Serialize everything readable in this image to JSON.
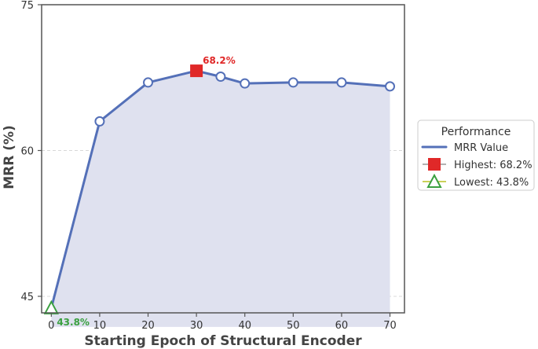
{
  "chart_data": {
    "type": "line",
    "xlabel": "Starting Epoch of Structural Encoder",
    "ylabel": "MRR (%)",
    "ylim": [
      43.3,
      75
    ],
    "xlim": [
      -2,
      73
    ],
    "yticks": [
      45,
      60,
      75
    ],
    "xticks": [
      0,
      10,
      20,
      30,
      40,
      50,
      60,
      70
    ],
    "grid": "horizontal dashed",
    "legend_placement": "right",
    "x": [
      0,
      10,
      20,
      30,
      35,
      40,
      50,
      60,
      70
    ],
    "series": [
      {
        "name": "MRR Value",
        "values": [
          43.8,
          63.0,
          67.0,
          68.2,
          67.6,
          66.9,
          67.0,
          67.0,
          66.6
        ]
      }
    ],
    "highest": {
      "x": 30,
      "y": 68.2,
      "label": "68.2%"
    },
    "lowest": {
      "x": 0,
      "y": 43.8,
      "label": "43.8%"
    },
    "legend": {
      "title": "Performance",
      "entries": [
        "MRR Value",
        "Highest: 68.2%",
        "Lowest: 43.8%"
      ]
    },
    "colors": {
      "line": "#5470b8",
      "fill": "#dfe1ef",
      "highest": "#e02828",
      "lowest": "#3aa040",
      "axis": "#555555"
    }
  }
}
